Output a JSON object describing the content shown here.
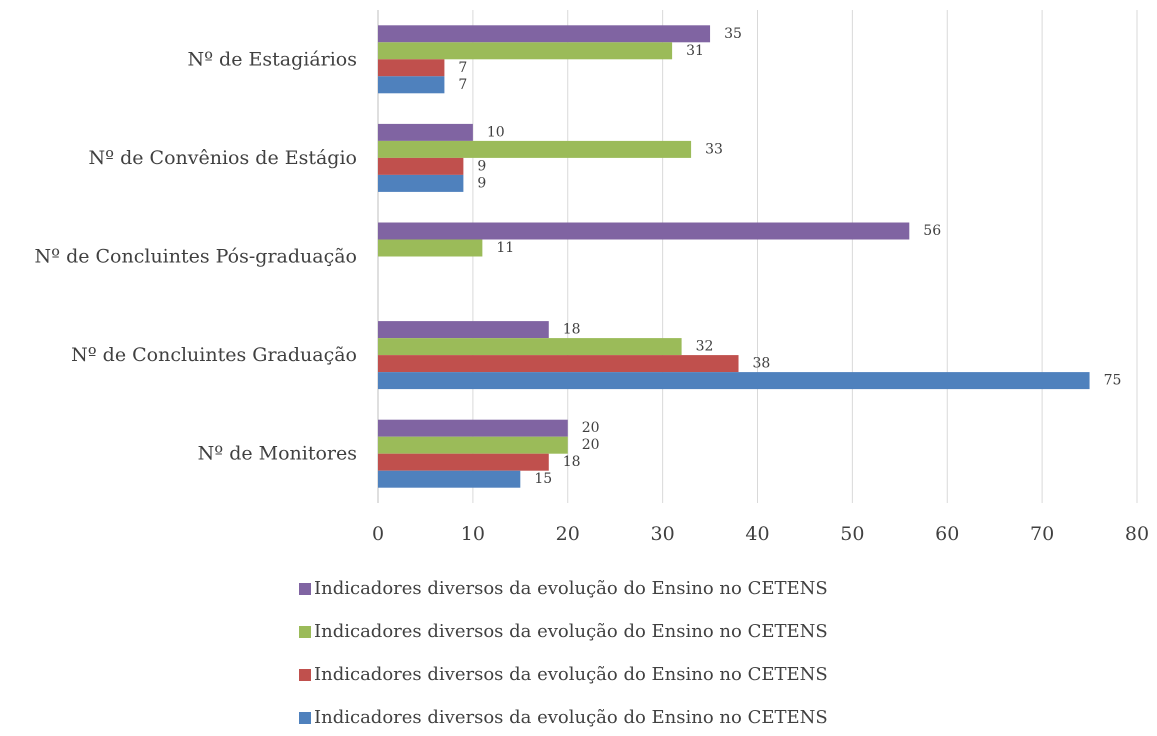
{
  "chart_data": {
    "type": "bar",
    "orientation": "horizontal",
    "categories": [
      "Nº de Estagiários",
      "Nº de Convênios de Estágio",
      "Nº de Concluintes Pós-graduação",
      "Nº de Concluintes Graduação",
      "Nº de Monitores"
    ],
    "series": [
      {
        "name": "Indicadores diversos da evolução do Ensino no CETENS",
        "color": "#8064a2",
        "values": [
          35,
          10,
          56,
          18,
          20
        ]
      },
      {
        "name": "Indicadores diversos da evolução do Ensino no CETENS",
        "color": "#9bbb59",
        "values": [
          31,
          33,
          11,
          32,
          20
        ]
      },
      {
        "name": "Indicadores diversos da evolução do Ensino no CETENS",
        "color": "#c0504d",
        "values": [
          7,
          9,
          null,
          38,
          18
        ]
      },
      {
        "name": "Indicadores diversos da evolução do Ensino no CETENS",
        "color": "#4f81bd",
        "values": [
          7,
          9,
          null,
          75,
          15
        ]
      }
    ],
    "xlim": [
      0,
      80
    ],
    "xticks": [
      0,
      10,
      20,
      30,
      40,
      50,
      60,
      70,
      80
    ],
    "grid": true,
    "legend": "bottom"
  }
}
